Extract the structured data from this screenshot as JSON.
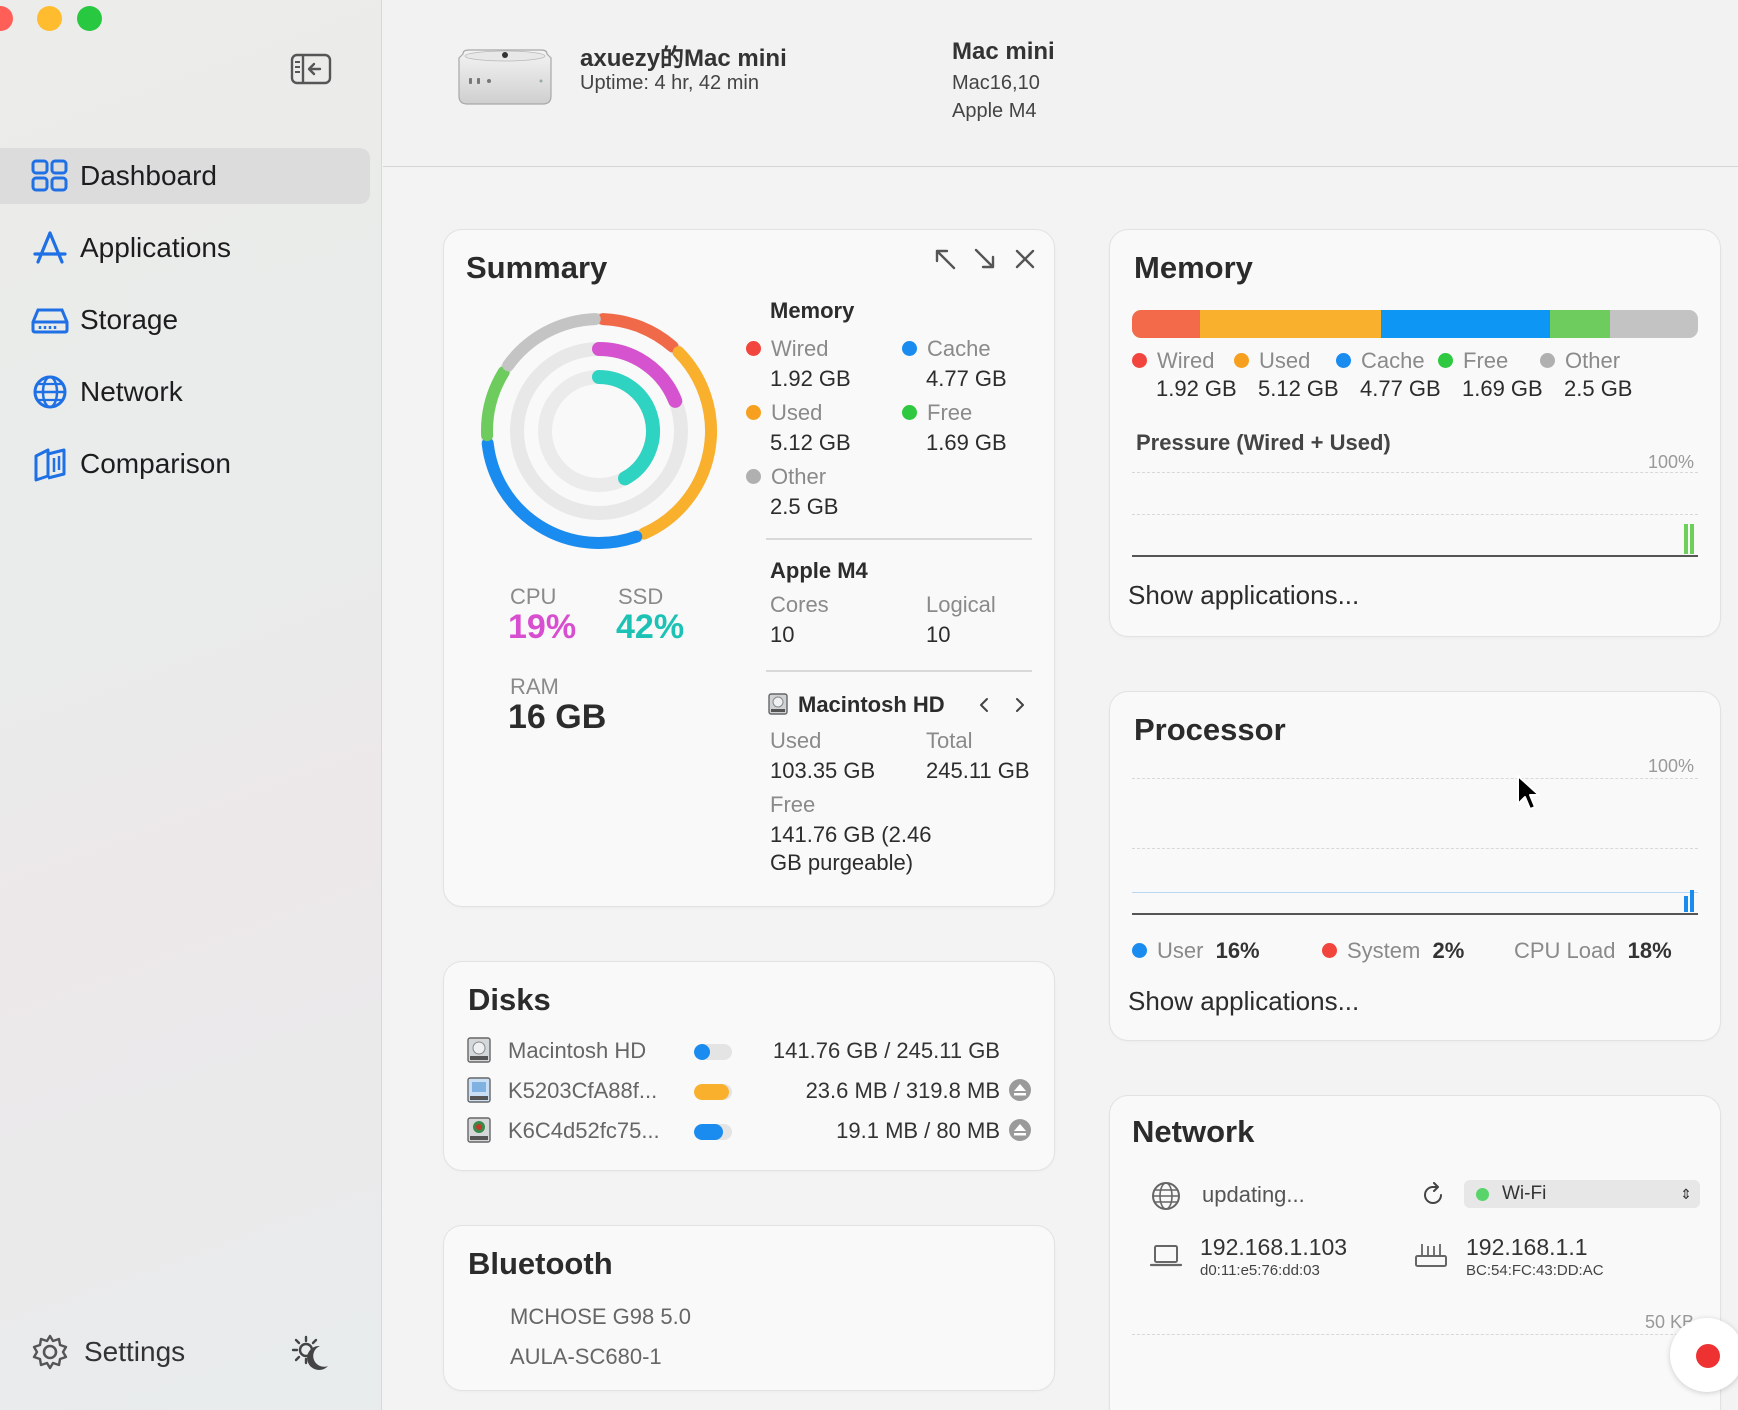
{
  "sidebar": {
    "items": [
      {
        "label": "Dashboard"
      },
      {
        "label": "Applications"
      },
      {
        "label": "Storage"
      },
      {
        "label": "Network"
      },
      {
        "label": "Comparison"
      }
    ],
    "settings_label": "Settings"
  },
  "header": {
    "device_name": "axuezy的Mac mini",
    "uptime": "Uptime: 4 hr, 42 min",
    "model": "Mac mini",
    "model_id": "Mac16,10",
    "chip": "Apple M4"
  },
  "summary": {
    "title": "Summary",
    "memory_heading": "Memory",
    "memory": [
      {
        "label": "Wired",
        "value": "1.92 GB",
        "color": "#f2453d"
      },
      {
        "label": "Cache",
        "value": "4.77 GB",
        "color": "#1a8cf0"
      },
      {
        "label": "Used",
        "value": "5.12 GB",
        "color": "#f7a020"
      },
      {
        "label": "Free",
        "value": "1.69 GB",
        "color": "#2ec940"
      },
      {
        "label": "Other",
        "value": "2.5 GB",
        "color": "#b0b0b0"
      }
    ],
    "cpu_label": "CPU",
    "cpu_value": "19%",
    "cpu_fraction": 0.19,
    "ssd_label": "SSD",
    "ssd_value": "42%",
    "ssd_fraction": 0.42,
    "ram_label": "RAM",
    "ram_value": "16 GB",
    "chip_heading": "Apple M4",
    "cores_label": "Cores",
    "cores_value": "10",
    "logical_label": "Logical",
    "logical_value": "10",
    "disk_heading": "Macintosh HD",
    "disk_used_label": "Used",
    "disk_used_value": "103.35 GB",
    "disk_total_label": "Total",
    "disk_total_value": "245.11 GB",
    "disk_free_label": "Free",
    "disk_free_line1": "141.76 GB (2.46",
    "disk_free_line2": "GB purgeable)"
  },
  "memory_card": {
    "title": "Memory",
    "legend": [
      {
        "label": "Wired",
        "value": "1.92 GB",
        "color": "#f2453d",
        "bar_color": "#f26a4a",
        "gb": 1.92
      },
      {
        "label": "Used",
        "value": "5.12 GB",
        "color": "#f7a020",
        "bar_color": "#f9b02c",
        "gb": 5.12
      },
      {
        "label": "Cache",
        "value": "4.77 GB",
        "color": "#1a8cf0",
        "bar_color": "#0e96f5",
        "gb": 4.77
      },
      {
        "label": "Free",
        "value": "1.69 GB",
        "color": "#2ec940",
        "bar_color": "#6dcc5d",
        "gb": 1.69
      },
      {
        "label": "Other",
        "value": "2.5 GB",
        "color": "#b0b0b0",
        "bar_color": "#c3c3c3",
        "gb": 2.5
      }
    ],
    "pressure_label": "Pressure (Wired + Used)",
    "pressure_max": "100%",
    "show_apps": "Show applications..."
  },
  "processor_card": {
    "title": "Processor",
    "max_label": "100%",
    "user_label": "User",
    "user_value": "16%",
    "user_color": "#1a8cf0",
    "system_label": "System",
    "system_value": "2%",
    "system_color": "#f2453d",
    "load_label": "CPU Load",
    "load_value": "18%",
    "show_apps": "Show applications..."
  },
  "disks_card": {
    "title": "Disks",
    "rows": [
      {
        "name": "Macintosh HD",
        "size": "141.76 GB / 245.11 GB",
        "fill": 0.42,
        "color": "#1a8cf0",
        "ejectable": false
      },
      {
        "name": "K5203CfA88f...",
        "size": "23.6 MB / 319.8 MB",
        "fill": 0.93,
        "color": "#f9b02c",
        "ejectable": true
      },
      {
        "name": "K6C4d52fc75...",
        "size": "19.1 MB / 80 MB",
        "fill": 0.76,
        "color": "#1a8cf0",
        "ejectable": true
      }
    ]
  },
  "bluetooth_card": {
    "title": "Bluetooth",
    "devices": [
      "MCHOSE G98 5.0",
      "AULA-SC680-1"
    ]
  },
  "network_card": {
    "title": "Network",
    "public_ip": "updating...",
    "interface": "Wi-Fi",
    "local_ip": "192.168.1.103",
    "local_mac": "d0:11:e5:76:dd:03",
    "router_ip": "192.168.1.1",
    "router_mac": "BC:54:FC:43:DD:AC",
    "scale_label": "50 KB"
  }
}
